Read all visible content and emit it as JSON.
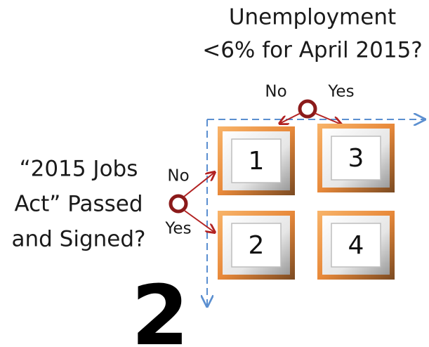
{
  "top_question": {
    "lines": [
      "Unemployment",
      "<6% for April 2015?"
    ],
    "no": "No",
    "yes": "Yes"
  },
  "left_question": {
    "lines": [
      "“2015 Jobs",
      "Act” Passed",
      "and Signed?"
    ],
    "no": "No",
    "yes": "Yes"
  },
  "boxes": [
    "1",
    "3",
    "2",
    "4"
  ],
  "big_number": "2"
}
